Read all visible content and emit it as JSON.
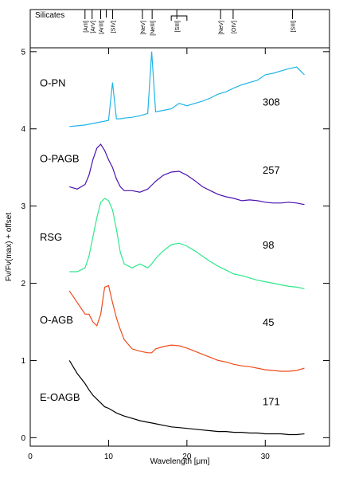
{
  "chart_data": {
    "type": "line",
    "xlabel": "Wavelength [μm]",
    "ylabel": "Fν/Fν(max) + offset",
    "panel_title": "Silicates",
    "xlim": [
      0,
      38.2
    ],
    "ylim": [
      -0.11,
      5.05
    ],
    "xticks": [
      0,
      10,
      20,
      30
    ],
    "yticks": [
      0,
      1,
      2,
      3,
      4,
      5
    ],
    "line_markers": [
      {
        "label": "[ArII]",
        "value": 6.99
      },
      {
        "label": "[ArV]",
        "value": 7.9
      },
      {
        "label": "[ArIII]",
        "value": 8.99
      },
      {
        "label": "[SIV]",
        "value": 10.51
      },
      {
        "label": "[NeV]",
        "value": 14.32
      },
      {
        "label": "[NeIII]",
        "value": 15.56
      },
      {
        "label": "[SIII]",
        "value": 18.71
      },
      {
        "label": "[NeV]",
        "value": 24.3
      },
      {
        "label": "[OIV]",
        "value": 25.9
      },
      {
        "label": "[SIII]",
        "value": 33.48
      }
    ],
    "silicate_marker": 9.7,
    "silicate_band": [
      18,
      20
    ],
    "x": [
      5,
      6,
      7,
      7.5,
      8,
      8.5,
      9,
      9.5,
      10,
      10.5,
      11,
      11.5,
      12,
      13,
      14,
      15,
      15.5,
      16,
      17,
      18,
      19,
      20,
      21,
      22,
      23,
      24,
      25,
      26,
      27,
      28,
      29,
      30,
      31,
      32,
      33,
      34,
      35
    ],
    "series": [
      {
        "name": "O-PN",
        "color": "#1fb4e8",
        "annotation": 308,
        "values": [
          4.03,
          4.04,
          4.05,
          4.06,
          4.07,
          4.08,
          4.09,
          4.1,
          4.11,
          4.6,
          4.13,
          4.13,
          4.14,
          4.15,
          4.17,
          4.2,
          5.0,
          4.22,
          4.24,
          4.26,
          4.33,
          4.3,
          4.33,
          4.36,
          4.4,
          4.45,
          4.48,
          4.53,
          4.57,
          4.6,
          4.63,
          4.7,
          4.72,
          4.75,
          4.78,
          4.8,
          4.7
        ]
      },
      {
        "name": "O-PAGB",
        "color": "#4b12b0",
        "annotation": 257,
        "values": [
          3.25,
          3.22,
          3.28,
          3.4,
          3.6,
          3.75,
          3.8,
          3.72,
          3.6,
          3.5,
          3.35,
          3.25,
          3.2,
          3.2,
          3.18,
          3.22,
          3.27,
          3.32,
          3.4,
          3.44,
          3.45,
          3.4,
          3.33,
          3.25,
          3.2,
          3.15,
          3.12,
          3.1,
          3.07,
          3.08,
          3.07,
          3.05,
          3.04,
          3.04,
          3.05,
          3.04,
          3.02
        ]
      },
      {
        "name": "RSG",
        "color": "#2ee88a",
        "annotation": 98,
        "values": [
          2.15,
          2.15,
          2.2,
          2.35,
          2.6,
          2.85,
          3.05,
          3.1,
          3.07,
          2.95,
          2.7,
          2.4,
          2.25,
          2.2,
          2.25,
          2.2,
          2.25,
          2.32,
          2.42,
          2.5,
          2.52,
          2.48,
          2.42,
          2.35,
          2.28,
          2.22,
          2.17,
          2.12,
          2.1,
          2.07,
          2.04,
          2.02,
          2.0,
          1.98,
          1.96,
          1.95,
          1.93
        ]
      },
      {
        "name": "O-AGB",
        "color": "#f04a1a",
        "annotation": 45,
        "values": [
          1.9,
          1.75,
          1.6,
          1.6,
          1.5,
          1.45,
          1.6,
          1.95,
          1.97,
          1.75,
          1.55,
          1.4,
          1.27,
          1.15,
          1.12,
          1.1,
          1.1,
          1.15,
          1.18,
          1.2,
          1.19,
          1.16,
          1.12,
          1.08,
          1.04,
          1.0,
          0.98,
          0.95,
          0.93,
          0.92,
          0.9,
          0.88,
          0.87,
          0.86,
          0.86,
          0.87,
          0.9
        ]
      },
      {
        "name": "E-OAGB",
        "color": "#000000",
        "annotation": 171,
        "values": [
          1.0,
          0.83,
          0.7,
          0.62,
          0.55,
          0.5,
          0.45,
          0.4,
          0.38,
          0.35,
          0.32,
          0.3,
          0.28,
          0.25,
          0.22,
          0.2,
          0.19,
          0.18,
          0.16,
          0.14,
          0.13,
          0.12,
          0.11,
          0.1,
          0.09,
          0.08,
          0.08,
          0.07,
          0.07,
          0.06,
          0.06,
          0.05,
          0.05,
          0.05,
          0.04,
          0.04,
          0.05
        ]
      }
    ]
  }
}
